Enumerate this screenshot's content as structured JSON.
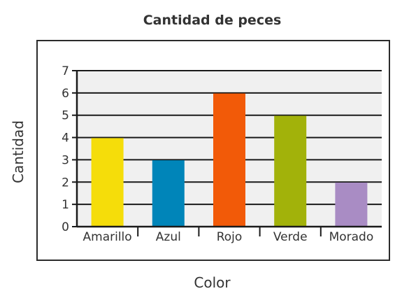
{
  "chart_data": {
    "type": "bar",
    "title": "Cantidad de peces",
    "xlabel": "Color",
    "ylabel": "Cantidad",
    "categories": [
      "Amarillo",
      "Azul",
      "Rojo",
      "Verde",
      "Morado"
    ],
    "values": [
      4,
      3,
      6,
      5,
      2
    ],
    "colors": [
      "#f5dd0a",
      "#0085b9",
      "#f25a08",
      "#a2b20a",
      "#a98cc4"
    ],
    "ylim": [
      0,
      7
    ],
    "yticks": [
      "0",
      "1",
      "2",
      "3",
      "4",
      "5",
      "6",
      "7"
    ],
    "grid": true,
    "plot_background": "#f0f0f0"
  }
}
